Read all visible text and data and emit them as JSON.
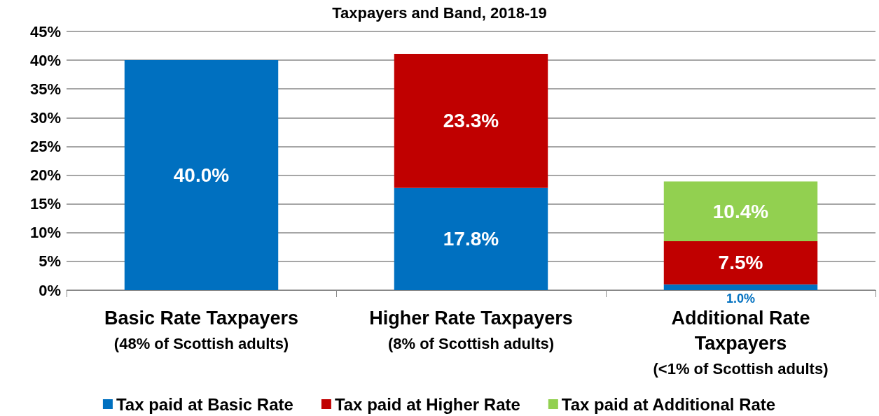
{
  "chart_data": {
    "type": "bar",
    "title": "Taxpayers and Band, 2018-19",
    "stacked": true,
    "categories": [
      "Basic Rate Taxpayers\n(48% of Scottish adults)",
      "Higher Rate Taxpayers\n(8% of Scottish adults)",
      "Additional Rate\nTaxpayers\n(<1% of Scottish adults)"
    ],
    "series": [
      {
        "name": "Tax paid at Basic Rate",
        "color": "#0070c0",
        "values": [
          40.0,
          17.8,
          1.0
        ],
        "value_labels": [
          "40.0%",
          "17.8%",
          "1.0%"
        ]
      },
      {
        "name": "Tax paid at Higher Rate",
        "color": "#c00000",
        "values": [
          null,
          23.3,
          7.5
        ],
        "value_labels": [
          null,
          "23.3%",
          "7.5%"
        ]
      },
      {
        "name": "Tax paid at Additional Rate",
        "color": "#92d050",
        "values": [
          null,
          null,
          10.4
        ],
        "value_labels": [
          null,
          null,
          "10.4%"
        ]
      }
    ],
    "ylim": [
      0,
      45
    ],
    "yticks": [
      {
        "value": 0,
        "label": "0%"
      },
      {
        "value": 5,
        "label": "5%"
      },
      {
        "value": 10,
        "label": "10%"
      },
      {
        "value": 15,
        "label": "15%"
      },
      {
        "value": 20,
        "label": "20%"
      },
      {
        "value": 25,
        "label": "25%"
      },
      {
        "value": 30,
        "label": "30%"
      },
      {
        "value": 35,
        "label": "35%"
      },
      {
        "value": 40,
        "label": "40%"
      },
      {
        "value": 45,
        "label": "45%"
      }
    ],
    "grid": "y",
    "legend": "bottom",
    "marker": "square"
  }
}
